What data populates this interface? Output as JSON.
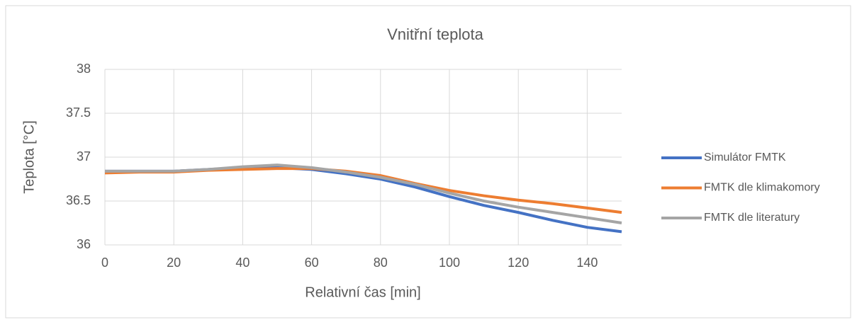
{
  "chart_data": {
    "type": "line",
    "title": "Vnitřní teplota",
    "xlabel": "Relativní čas [min]",
    "ylabel": "Teplota [°C]",
    "x": [
      0,
      10,
      20,
      30,
      40,
      50,
      60,
      70,
      80,
      90,
      100,
      110,
      120,
      130,
      140,
      150
    ],
    "series": [
      {
        "name": "Simulátor FMTK",
        "color": "#4472c4",
        "values": [
          36.84,
          36.84,
          36.84,
          36.86,
          36.88,
          36.88,
          36.86,
          36.81,
          36.75,
          36.66,
          36.55,
          36.45,
          36.37,
          36.28,
          36.2,
          36.15
        ]
      },
      {
        "name": "FMTK dle klimakomory",
        "color": "#ed7d31",
        "values": [
          36.82,
          36.83,
          36.83,
          36.85,
          36.86,
          36.87,
          36.87,
          36.84,
          36.79,
          36.7,
          36.62,
          36.56,
          36.51,
          36.47,
          36.42,
          36.37
        ]
      },
      {
        "name": "FMTK dle literatury",
        "color": "#a5a5a5",
        "values": [
          36.84,
          36.84,
          36.84,
          36.86,
          36.89,
          36.91,
          36.88,
          36.83,
          36.77,
          36.69,
          36.59,
          36.5,
          36.43,
          36.37,
          36.31,
          36.25
        ]
      }
    ],
    "xlim": [
      0,
      150
    ],
    "xticks": [
      0,
      20,
      40,
      60,
      80,
      100,
      120,
      140
    ],
    "ylim": [
      36,
      38
    ],
    "yticks": [
      36,
      36.5,
      37,
      37.5,
      38
    ],
    "grid": true,
    "legend": "right"
  }
}
